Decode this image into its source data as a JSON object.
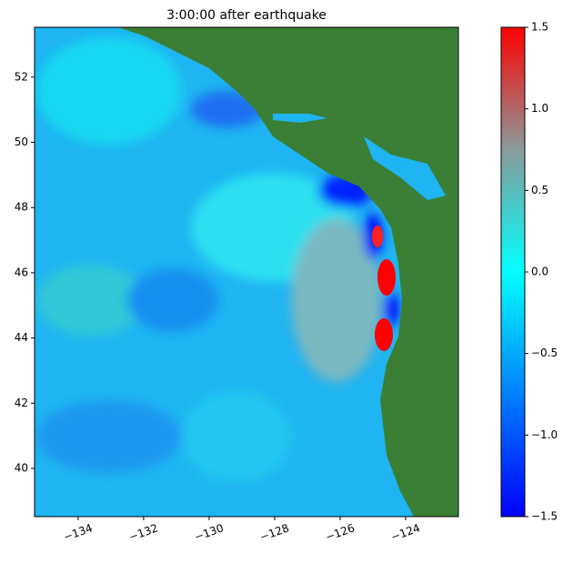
{
  "chart_data": {
    "type": "heatmap",
    "title": "3:00:00 after earthquake",
    "xlim": [
      -135.33,
      -122.39
    ],
    "xticks": [
      {
        "value": -134,
        "label": "−134"
      },
      {
        "value": -132,
        "label": "−132"
      },
      {
        "value": -130,
        "label": "−130"
      },
      {
        "value": -128,
        "label": "−128"
      },
      {
        "value": -126,
        "label": "−126"
      },
      {
        "value": -124,
        "label": "−124"
      }
    ],
    "ylim": [
      38.52,
      53.53
    ],
    "yticks": [
      40,
      42,
      44,
      46,
      48,
      50,
      52
    ],
    "colorbar": {
      "lim": [
        -1.5,
        1.5
      ],
      "ticks": [
        {
          "value": -1.5,
          "label": "−1.5"
        },
        {
          "value": -1.0,
          "label": "−1.0"
        },
        {
          "value": -0.5,
          "label": "−0.5"
        },
        {
          "value": 0.0,
          "label": "0.0"
        },
        0.5,
        {
          "value": 1.0,
          "label": "1.0"
        },
        1.5
      ],
      "colors": [
        "#0000ff",
        "#0080ff",
        "#00ffff",
        "#8a9a9a",
        "#ff0000"
      ]
    }
  }
}
